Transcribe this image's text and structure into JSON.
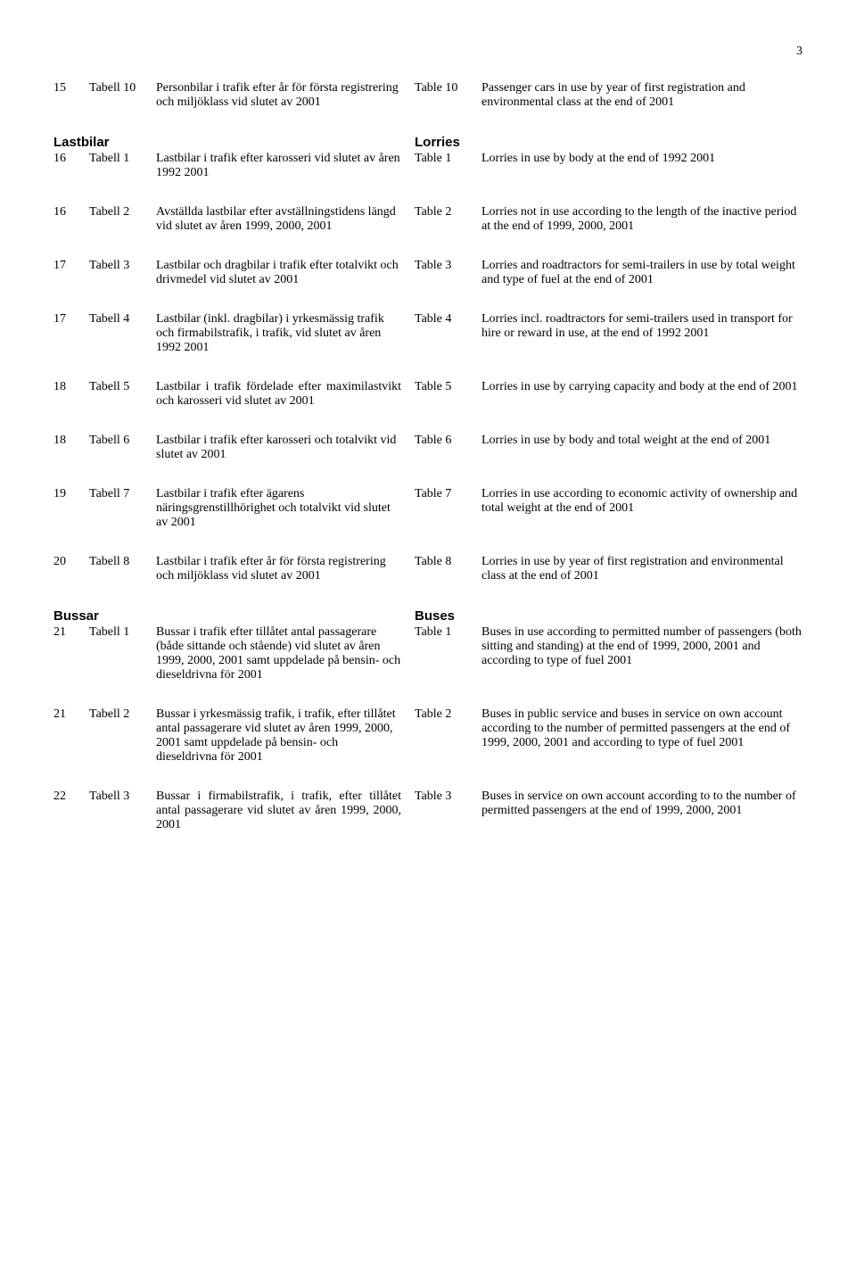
{
  "page_number": "3",
  "rows": [
    {
      "page": "15",
      "label_sv": "Tabell 10",
      "sv": "Personbilar i trafik efter år för första registrering och miljöklass vid slutet av 2001",
      "label_en": "Table 10",
      "en": "Passenger cars in use by year of first registration and environmental class at the end of 2001"
    },
    {
      "section_sv": "Lastbilar",
      "section_en": "Lorries"
    },
    {
      "page": "16",
      "label_sv": "Tabell 1",
      "sv": "Lastbilar i trafik efter karosseri vid slutet av åren 1992 2001",
      "label_en": "Table 1",
      "en": "Lorries in use by body at the end of 1992 2001"
    },
    {
      "page": "16",
      "label_sv": "Tabell 2",
      "sv": "Avställda lastbilar efter avställningstidens längd vid slutet av åren 1999, 2000, 2001",
      "label_en": "Table 2",
      "en": "Lorries not in use according to the length of the inactive period at the end of 1999, 2000, 2001"
    },
    {
      "page": "17",
      "label_sv": "Tabell 3",
      "sv": "Lastbilar och dragbilar i trafik efter totalvikt och drivmedel vid slutet av 2001",
      "label_en": "Table 3",
      "en": "Lorries and roadtractors for semi-trailers in use by total weight and type of fuel at the end of 2001"
    },
    {
      "page": "17",
      "label_sv": "Tabell 4",
      "sv": "Lastbilar (inkl. dragbilar) i yrkesmässig trafik och firmabilstrafik, i trafik, vid slutet av åren 1992 2001",
      "label_en": "Table 4",
      "en": "Lorries incl. roadtractors for semi-trailers used in transport for hire or reward in use, at the end of 1992 2001"
    },
    {
      "page": "18",
      "label_sv": "Tabell 5",
      "sv": "Lastbilar i trafik fördelade efter maximilastvikt och karosseri vid slutet av 2001",
      "label_en": "Table 5",
      "en": "Lorries in use by carrying capacity and body at the end of 2001",
      "sv_justify": true
    },
    {
      "page": "18",
      "label_sv": "Tabell 6",
      "sv": "Lastbilar i trafik efter karosseri och totalvikt vid slutet av 2001",
      "label_en": "Table 6",
      "en": "Lorries in use by body and total weight at the end of 2001"
    },
    {
      "page": "19",
      "label_sv": "Tabell 7",
      "sv": "Lastbilar i trafik efter ägarens näringsgrenstillhörighet och totalvikt vid slutet av 2001",
      "label_en": "Table 7",
      "en": "Lorries in use according to economic activity of ownership and total weight at the end of 2001"
    },
    {
      "page": "20",
      "label_sv": "Tabell 8",
      "sv": "Lastbilar i trafik efter år för första registrering och miljöklass vid slutet av 2001",
      "label_en": "Table 8",
      "en": "Lorries in use by year of first registration and environmental class at the end of 2001"
    },
    {
      "section_sv": "Bussar",
      "section_en": "Buses"
    },
    {
      "page": "21",
      "label_sv": "Tabell 1",
      "sv": "Bussar i trafik efter tillåtet antal passagerare (både sittande och stående) vid slutet av åren 1999, 2000, 2001 samt uppdelade på bensin- och dieseldrivna för 2001",
      "label_en": "Table 1",
      "en": "Buses in use according to permitted number of passengers (both sitting and standing) at the end of 1999, 2000, 2001 and according to type of fuel 2001"
    },
    {
      "page": "21",
      "label_sv": "Tabell 2",
      "sv": "Bussar i yrkesmässig trafik, i trafik, efter tillåtet antal passagerare vid slutet av åren 1999, 2000, 2001 samt uppdelade på bensin- och dieseldrivna för 2001",
      "label_en": "Table 2",
      "en": "Buses in public service and buses in service on own account according to the number of permitted passengers at the end of 1999, 2000, 2001 and according to type of fuel 2001"
    },
    {
      "page": "22",
      "label_sv": "Tabell 3",
      "sv": "Bussar i firmabilstrafik, i trafik, efter tillåtet antal passagerare vid slutet av åren 1999, 2000, 2001",
      "label_en": "Table 3",
      "en": "Buses in service on own account according to to the number of permitted passengers at the end of 1999, 2000, 2001",
      "sv_justify": true
    }
  ]
}
